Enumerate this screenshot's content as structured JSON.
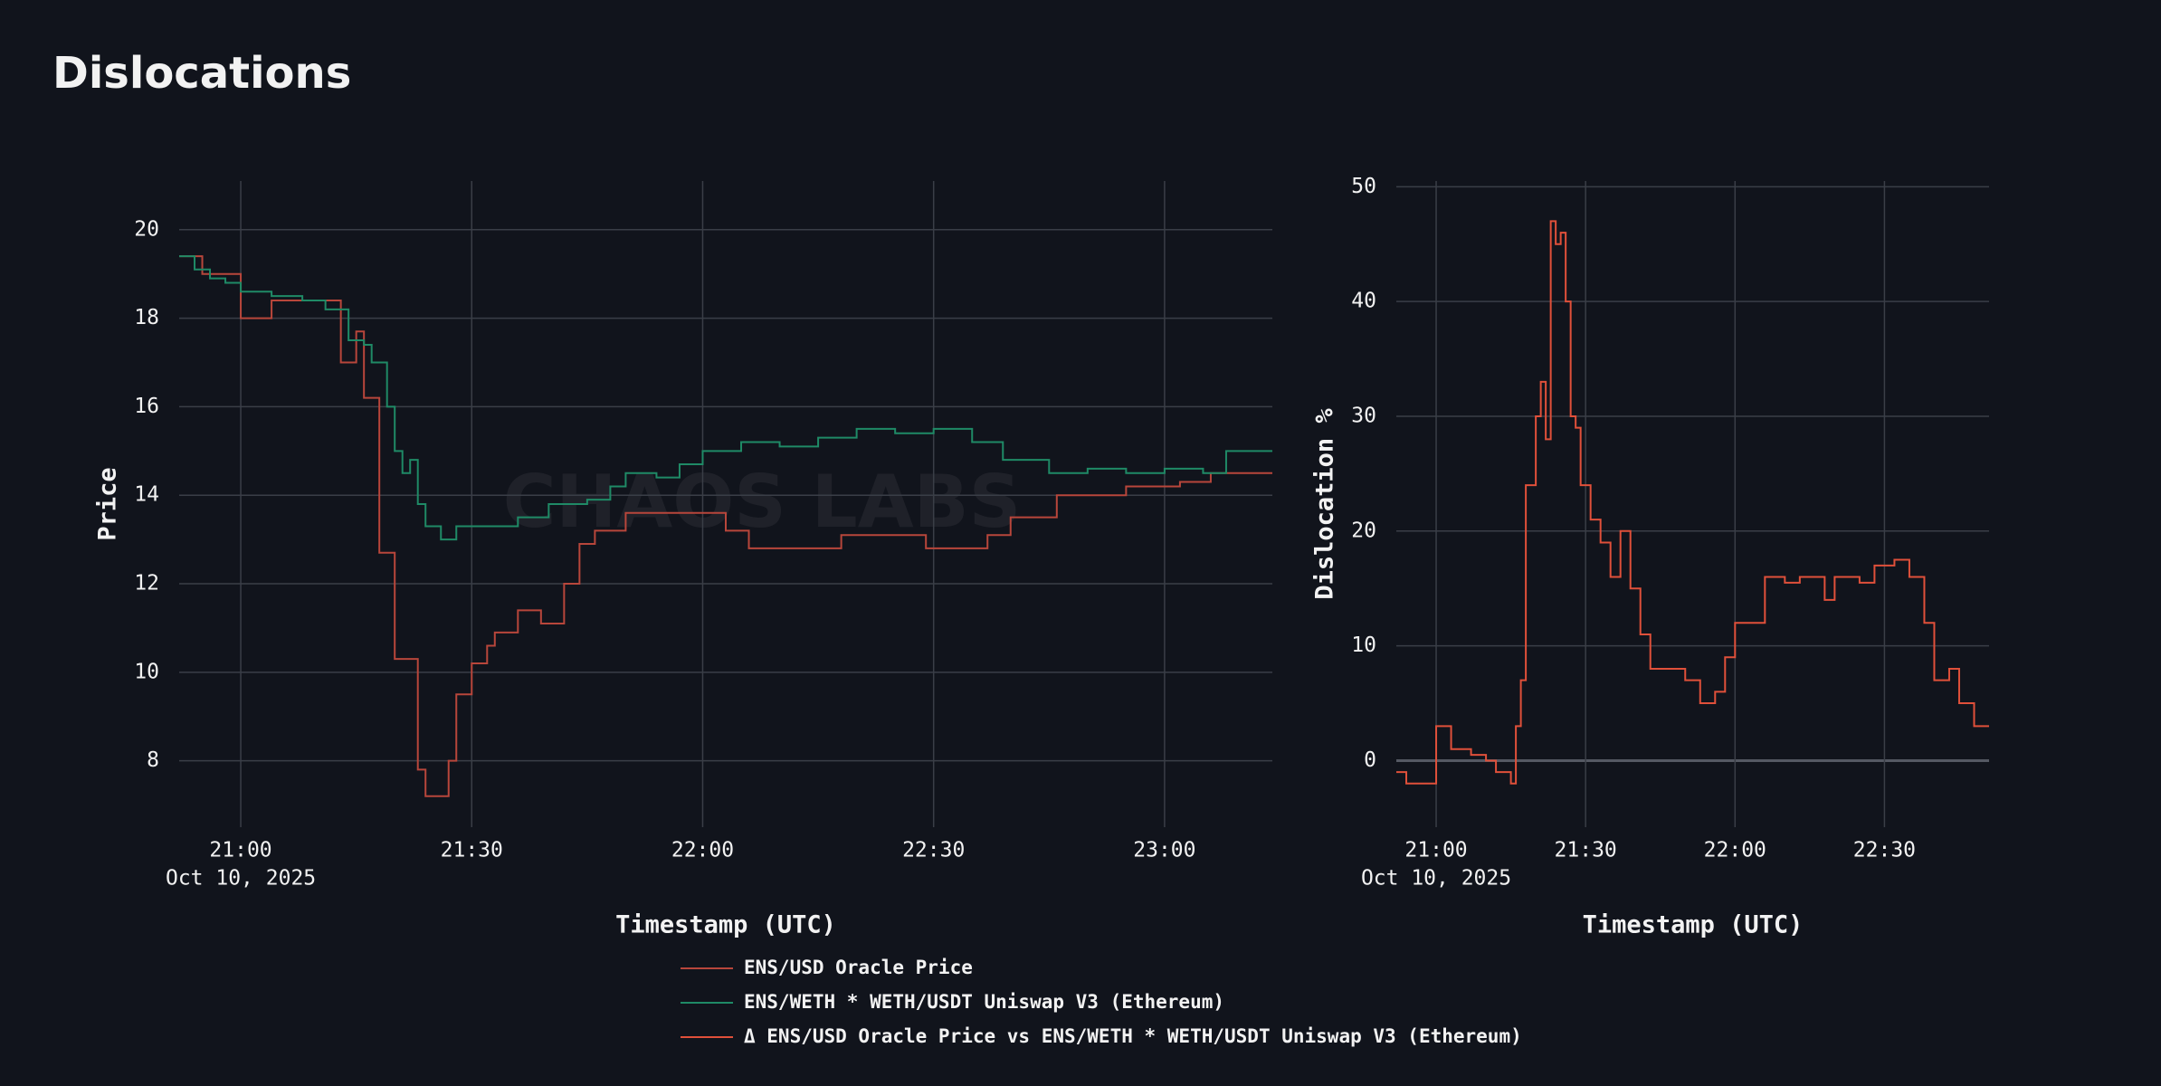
{
  "title": "Dislocations",
  "chart_data": [
    {
      "type": "line",
      "step": true,
      "watermark": "CHAOS LABS",
      "x_label": "Timestamp (UTC)",
      "y_label": "Price",
      "grid": true,
      "legend": "bottom",
      "date_label": "Oct 10, 2025",
      "xlim": [
        "2025-10-10 20:52",
        "2025-10-10 23:14"
      ],
      "xticks": [
        {
          "value": "2025-10-10 21:00",
          "label": "21:00"
        },
        {
          "value": "2025-10-10 21:30",
          "label": "21:30"
        },
        {
          "value": "2025-10-10 22:00",
          "label": "22:00"
        },
        {
          "value": "2025-10-10 22:30",
          "label": "22:30"
        },
        {
          "value": "2025-10-10 23:00",
          "label": "23:00"
        }
      ],
      "ylim": [
        6.5,
        21.1
      ],
      "yticks": [
        8,
        10,
        12,
        14,
        16,
        18,
        20
      ],
      "series": [
        {
          "name": "ENS/USD Oracle Price",
          "color": "#b8463b",
          "x": [
            "2025-10-10 20:52",
            "2025-10-10 20:55",
            "2025-10-10 21:00",
            "2025-10-10 21:04",
            "2025-10-10 21:13",
            "2025-10-10 21:15",
            "2025-10-10 21:16",
            "2025-10-10 21:18",
            "2025-10-10 21:20",
            "2025-10-10 21:23",
            "2025-10-10 21:24",
            "2025-10-10 21:27",
            "2025-10-10 21:28",
            "2025-10-10 21:30",
            "2025-10-10 21:32",
            "2025-10-10 21:33",
            "2025-10-10 21:36",
            "2025-10-10 21:39",
            "2025-10-10 21:42",
            "2025-10-10 21:44",
            "2025-10-10 21:46",
            "2025-10-10 21:50",
            "2025-10-10 22:03",
            "2025-10-10 22:06",
            "2025-10-10 22:18",
            "2025-10-10 22:29",
            "2025-10-10 22:37",
            "2025-10-10 22:40",
            "2025-10-10 22:46",
            "2025-10-10 22:55",
            "2025-10-10 23:02",
            "2025-10-10 23:06",
            "2025-10-10 23:14"
          ],
          "values": [
            19.4,
            19.0,
            18.0,
            18.4,
            17.0,
            17.7,
            16.2,
            12.7,
            10.3,
            7.8,
            7.2,
            8.0,
            9.5,
            10.2,
            10.6,
            10.9,
            11.4,
            11.1,
            12.0,
            12.9,
            13.2,
            13.6,
            13.2,
            12.8,
            13.1,
            12.8,
            13.1,
            13.5,
            14.0,
            14.2,
            14.3,
            14.5,
            14.5
          ]
        },
        {
          "name": "ENS/WETH * WETH/USDT Uniswap V3 (Ethereum)",
          "color": "#1f8a66",
          "x": [
            "2025-10-10 20:52",
            "2025-10-10 20:54",
            "2025-10-10 20:56",
            "2025-10-10 20:58",
            "2025-10-10 21:00",
            "2025-10-10 21:04",
            "2025-10-10 21:08",
            "2025-10-10 21:11",
            "2025-10-10 21:14",
            "2025-10-10 21:16",
            "2025-10-10 21:17",
            "2025-10-10 21:19",
            "2025-10-10 21:20",
            "2025-10-10 21:21",
            "2025-10-10 21:22",
            "2025-10-10 21:23",
            "2025-10-10 21:24",
            "2025-10-10 21:26",
            "2025-10-10 21:28",
            "2025-10-10 21:32",
            "2025-10-10 21:36",
            "2025-10-10 21:40",
            "2025-10-10 21:45",
            "2025-10-10 21:48",
            "2025-10-10 21:50",
            "2025-10-10 21:54",
            "2025-10-10 21:57",
            "2025-10-10 22:00",
            "2025-10-10 22:05",
            "2025-10-10 22:10",
            "2025-10-10 22:15",
            "2025-10-10 22:20",
            "2025-10-10 22:25",
            "2025-10-10 22:30",
            "2025-10-10 22:35",
            "2025-10-10 22:39",
            "2025-10-10 22:45",
            "2025-10-10 22:50",
            "2025-10-10 22:55",
            "2025-10-10 23:00",
            "2025-10-10 23:05",
            "2025-10-10 23:08",
            "2025-10-10 23:14"
          ],
          "values": [
            19.4,
            19.1,
            18.9,
            18.8,
            18.6,
            18.5,
            18.4,
            18.2,
            17.5,
            17.4,
            17.0,
            16.0,
            15.0,
            14.5,
            14.8,
            13.8,
            13.3,
            13.0,
            13.3,
            13.3,
            13.5,
            13.8,
            13.9,
            14.2,
            14.5,
            14.4,
            14.7,
            15.0,
            15.2,
            15.1,
            15.3,
            15.5,
            15.4,
            15.5,
            15.2,
            14.8,
            14.5,
            14.6,
            14.5,
            14.6,
            14.5,
            15.0,
            15.0
          ]
        }
      ]
    },
    {
      "type": "line",
      "step": true,
      "x_label": "Timestamp (UTC)",
      "y_label": "Dislocation %",
      "grid": true,
      "date_label": "Oct 10, 2025",
      "xlim": [
        "2025-10-10 20:52",
        "2025-10-10 22:51"
      ],
      "xticks": [
        {
          "value": "2025-10-10 21:00",
          "label": "21:00"
        },
        {
          "value": "2025-10-10 21:30",
          "label": "21:30"
        },
        {
          "value": "2025-10-10 22:00",
          "label": "22:00"
        },
        {
          "value": "2025-10-10 22:30",
          "label": "22:30"
        }
      ],
      "ylim": [
        -5.8,
        50.5
      ],
      "yticks": [
        0,
        10,
        20,
        30,
        40,
        50
      ],
      "series": [
        {
          "name": "Δ ENS/USD Oracle Price vs ENS/WETH * WETH/USDT Uniswap V3 (Ethereum)",
          "color": "#e0503a",
          "x": [
            "2025-10-10 20:52",
            "2025-10-10 20:54",
            "2025-10-10 21:00",
            "2025-10-10 21:03",
            "2025-10-10 21:07",
            "2025-10-10 21:10",
            "2025-10-10 21:12",
            "2025-10-10 21:15",
            "2025-10-10 21:16",
            "2025-10-10 21:17",
            "2025-10-10 21:18",
            "2025-10-10 21:20",
            "2025-10-10 21:21",
            "2025-10-10 21:22",
            "2025-10-10 21:23",
            "2025-10-10 21:24",
            "2025-10-10 21:25",
            "2025-10-10 21:26",
            "2025-10-10 21:27",
            "2025-10-10 21:28",
            "2025-10-10 21:29",
            "2025-10-10 21:31",
            "2025-10-10 21:33",
            "2025-10-10 21:35",
            "2025-10-10 21:37",
            "2025-10-10 21:39",
            "2025-10-10 21:41",
            "2025-10-10 21:43",
            "2025-10-10 21:46",
            "2025-10-10 21:50",
            "2025-10-10 21:53",
            "2025-10-10 21:56",
            "2025-10-10 21:58",
            "2025-10-10 22:00",
            "2025-10-10 22:03",
            "2025-10-10 22:06",
            "2025-10-10 22:10",
            "2025-10-10 22:13",
            "2025-10-10 22:18",
            "2025-10-10 22:20",
            "2025-10-10 22:25",
            "2025-10-10 22:28",
            "2025-10-10 22:32",
            "2025-10-10 22:35",
            "2025-10-10 22:38",
            "2025-10-10 22:40",
            "2025-10-10 22:43",
            "2025-10-10 22:45",
            "2025-10-10 22:48",
            "2025-10-10 22:51"
          ],
          "values": [
            -1,
            -2,
            3,
            1,
            0.5,
            0,
            -1,
            -2,
            3,
            7,
            24,
            30,
            33,
            28,
            47,
            45,
            46,
            40,
            30,
            29,
            24,
            21,
            19,
            16,
            20,
            15,
            11,
            8,
            8,
            7,
            5,
            6,
            9,
            12,
            12,
            16,
            15.5,
            16,
            14,
            16,
            15.5,
            17,
            17.5,
            16,
            12,
            7,
            8,
            5,
            3,
            3
          ]
        }
      ]
    }
  ]
}
